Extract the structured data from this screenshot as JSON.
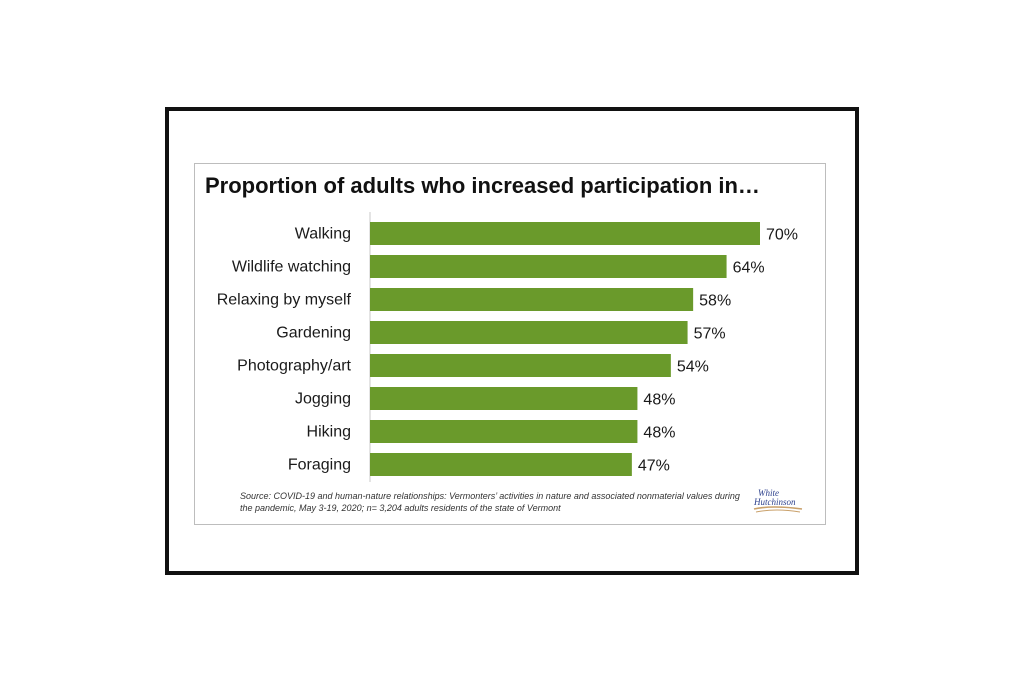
{
  "chart_data": {
    "type": "bar",
    "orientation": "horizontal",
    "title": "Proportion of adults who increased participation in…",
    "categories": [
      "Walking",
      "Wildlife watching",
      "Relaxing by myself",
      "Gardening",
      "Photography/art",
      "Jogging",
      "Hiking",
      "Foraging"
    ],
    "values": [
      70,
      64,
      58,
      57,
      54,
      48,
      48,
      47
    ],
    "value_labels": [
      "70%",
      "64%",
      "58%",
      "57%",
      "54%",
      "48%",
      "48%",
      "47%"
    ],
    "unit": "%",
    "xlim": [
      0,
      70
    ],
    "grid": false,
    "bar_color": "#6a9a2b",
    "source": "Source: COVID-19 and human-nature relationships: Vermonters’ activities in nature and associated nonmaterial values during the pandemic, May 3-19, 2020; n= 3,204 adults residents of the state of Vermont"
  },
  "logo": {
    "line1": "White",
    "line2": "Hutchinson"
  }
}
